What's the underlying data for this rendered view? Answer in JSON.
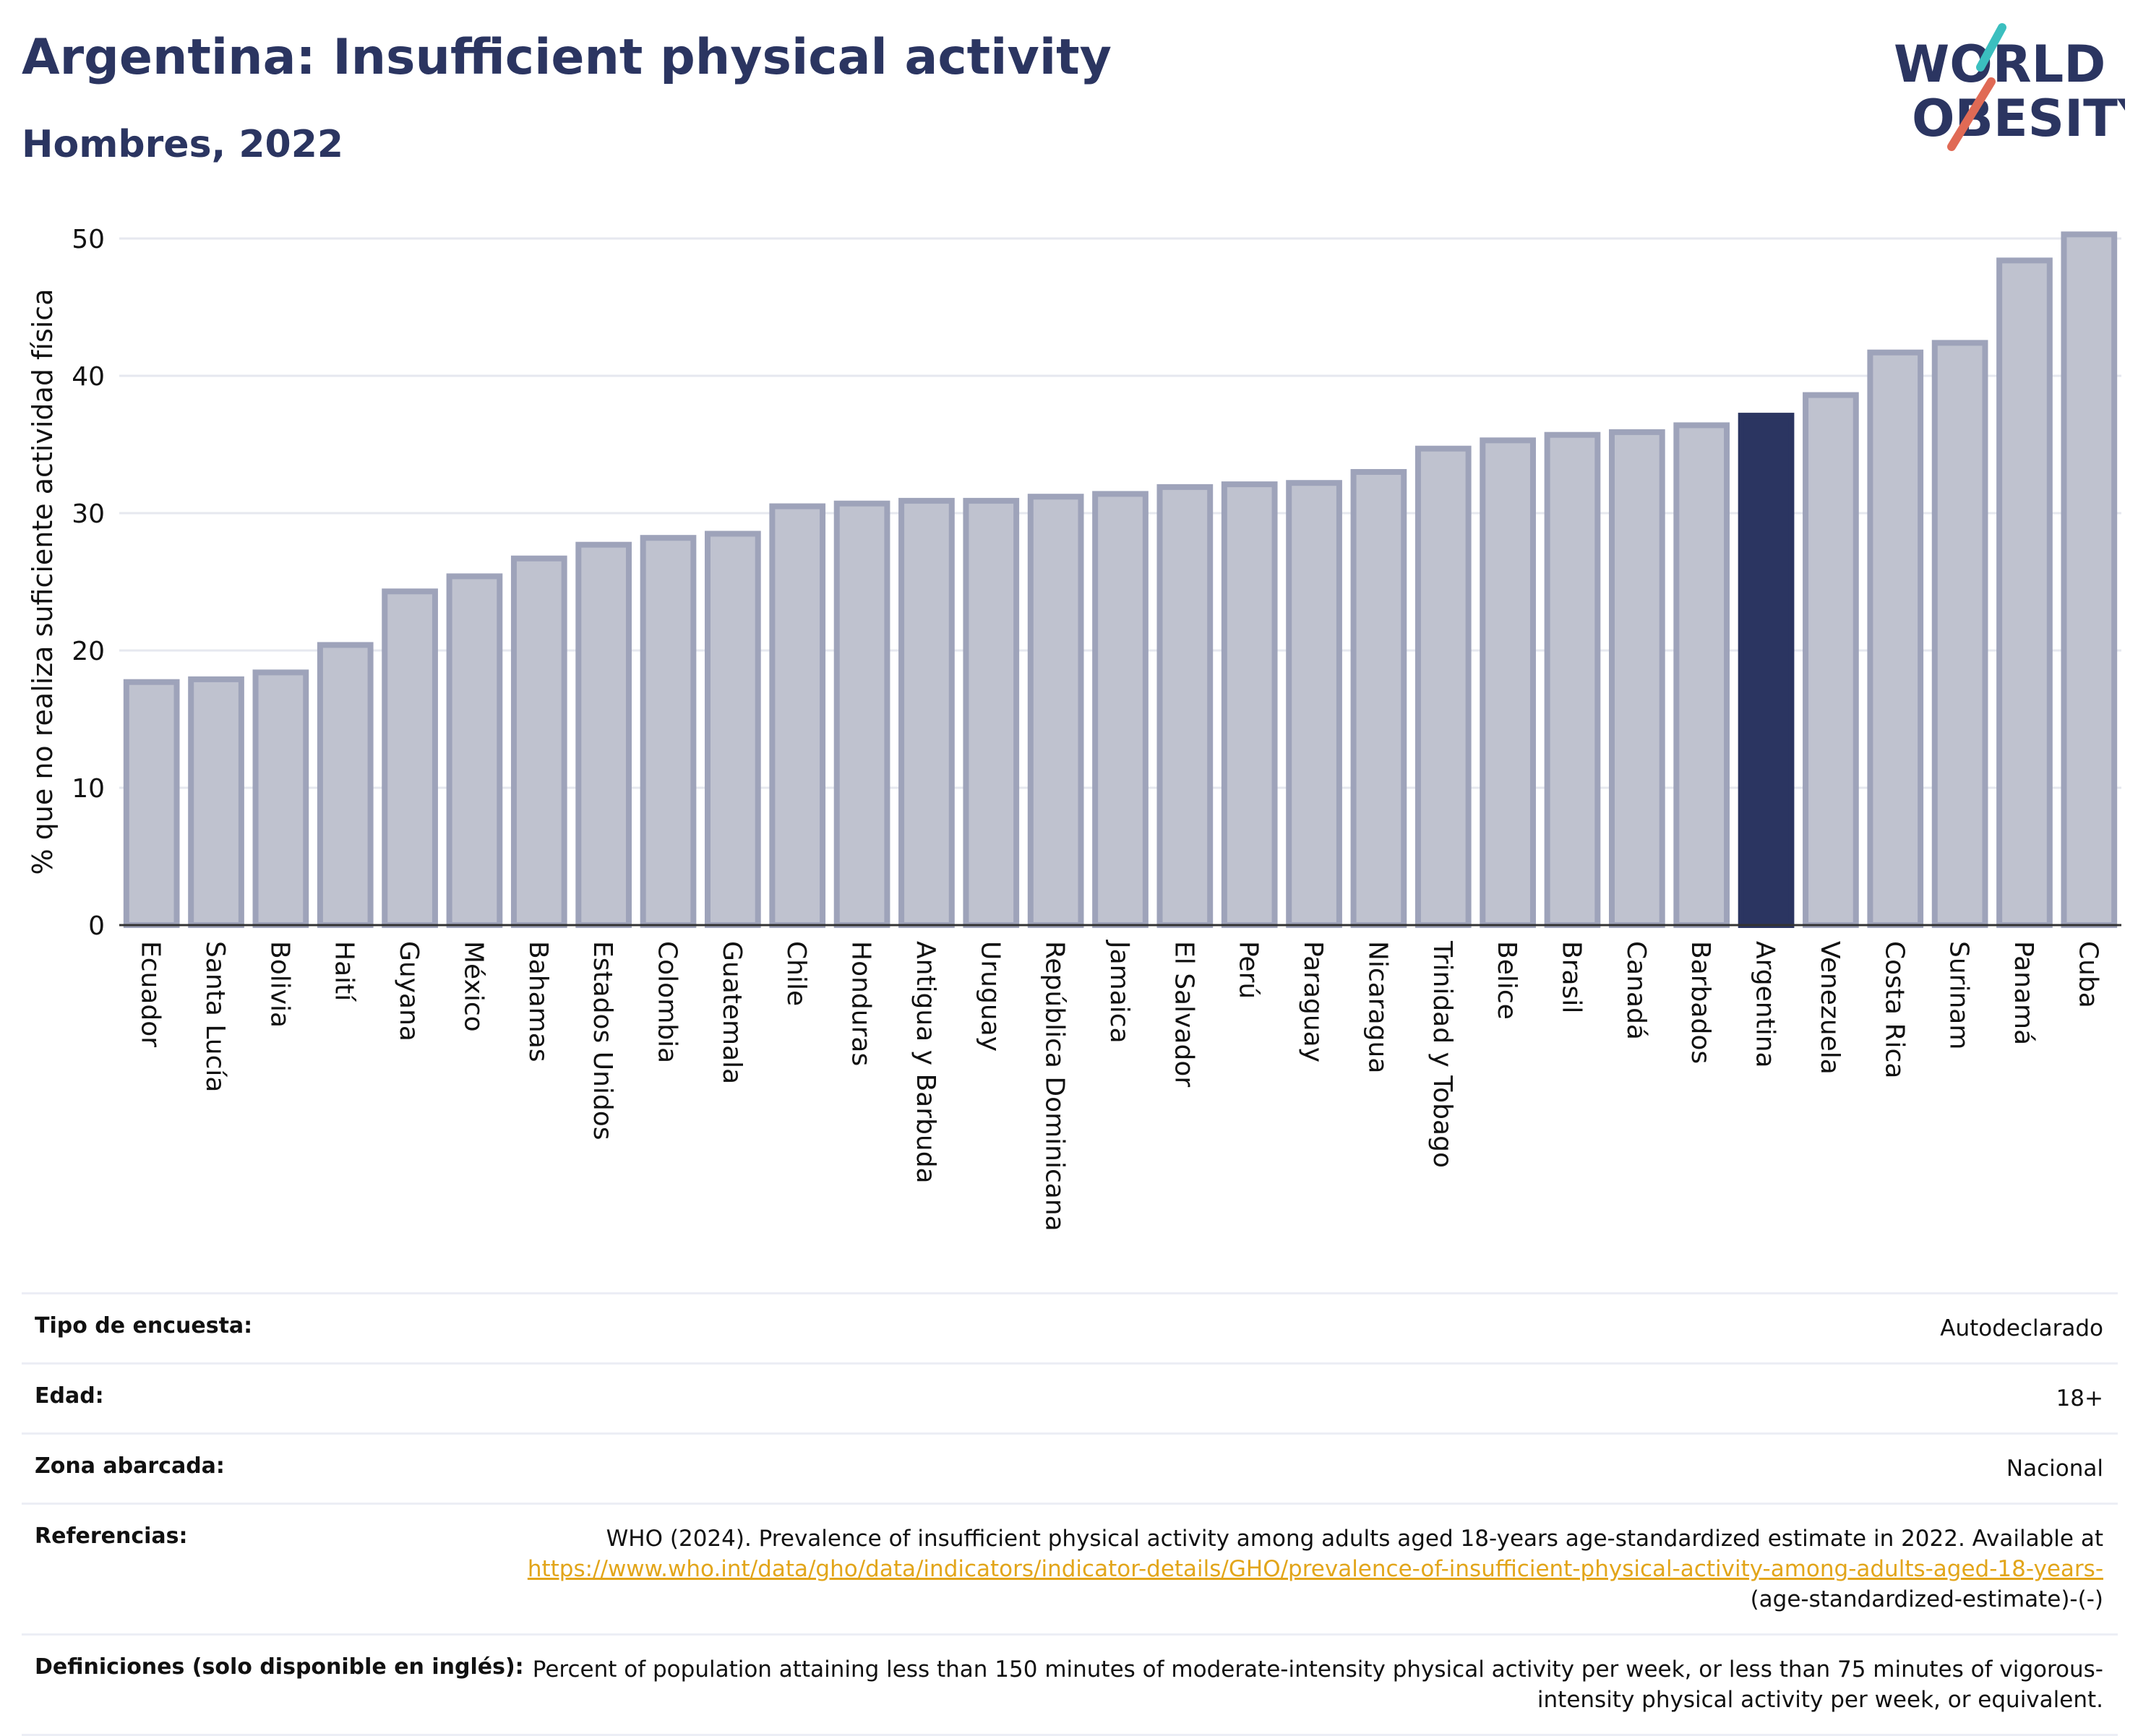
{
  "header": {
    "title": "Argentina: Insufficient physical activity",
    "subtitle": "Hombres, 2022"
  },
  "logo": {
    "line1": "WORLD",
    "line2": "OBESITY",
    "colors": [
      "#2b3561",
      "#e06a55",
      "#3bbfbf"
    ]
  },
  "chart_data": {
    "type": "bar",
    "ylabel": "% que no realiza suficiente actividad física",
    "xlabel": "",
    "ylim": [
      0,
      50
    ],
    "yticks": [
      0,
      10,
      20,
      30,
      40,
      50
    ],
    "grid": true,
    "highlight": "Argentina",
    "colors": {
      "bar": "#bfc2cf",
      "bar_border": "#9ea3ba",
      "highlight": "#2b3561"
    },
    "categories": [
      "Ecuador",
      "Santa Lucía",
      "Bolivia",
      "Haití",
      "Guyana",
      "México",
      "Bahamas",
      "Estados Unidos",
      "Colombia",
      "Guatemala",
      "Chile",
      "Honduras",
      "Antigua y Barbuda",
      "Uruguay",
      "República Dominicana",
      "Jamaica",
      "El Salvador",
      "Perú",
      "Paraguay",
      "Nicaragua",
      "Trinidad y Tobago",
      "Belice",
      "Brasil",
      "Canadá",
      "Barbados",
      "Argentina",
      "Venezuela",
      "Costa Rica",
      "Surinam",
      "Panamá",
      "Cuba"
    ],
    "values": [
      17.7,
      17.9,
      18.4,
      20.4,
      24.3,
      25.4,
      26.7,
      27.7,
      28.2,
      28.5,
      30.5,
      30.7,
      30.9,
      30.9,
      31.2,
      31.4,
      31.9,
      32.1,
      32.2,
      33.0,
      34.7,
      35.3,
      35.7,
      35.9,
      36.4,
      37.1,
      38.6,
      41.7,
      42.4,
      48.4,
      50.3
    ]
  },
  "meta": {
    "rows": [
      {
        "key": "Tipo de encuesta:",
        "value": "Autodeclarado"
      },
      {
        "key": "Edad:",
        "value": "18+"
      },
      {
        "key": "Zona abarcada:",
        "value": "Nacional"
      },
      {
        "key": "Referencias:",
        "value": "WHO (2024). Prevalence of insufficient physical activity among adults aged 18-years age-standardized estimate in 2022. Available at",
        "link": "https://www.who.int/data/gho/data/indicators/indicator-details/GHO/prevalence-of-insufficient-physical-activity-among-adults-aged-18-years-",
        "suffix": "(age-standardized-estimate)-(-)"
      },
      {
        "key": "Definiciones (solo disponible en inglés):",
        "value": "Percent of population attaining less than 150 minutes of moderate-intensity physical activity per week, or less than 75 minutes of vigorous-intensity physical activity per week, or equivalent."
      }
    ]
  }
}
